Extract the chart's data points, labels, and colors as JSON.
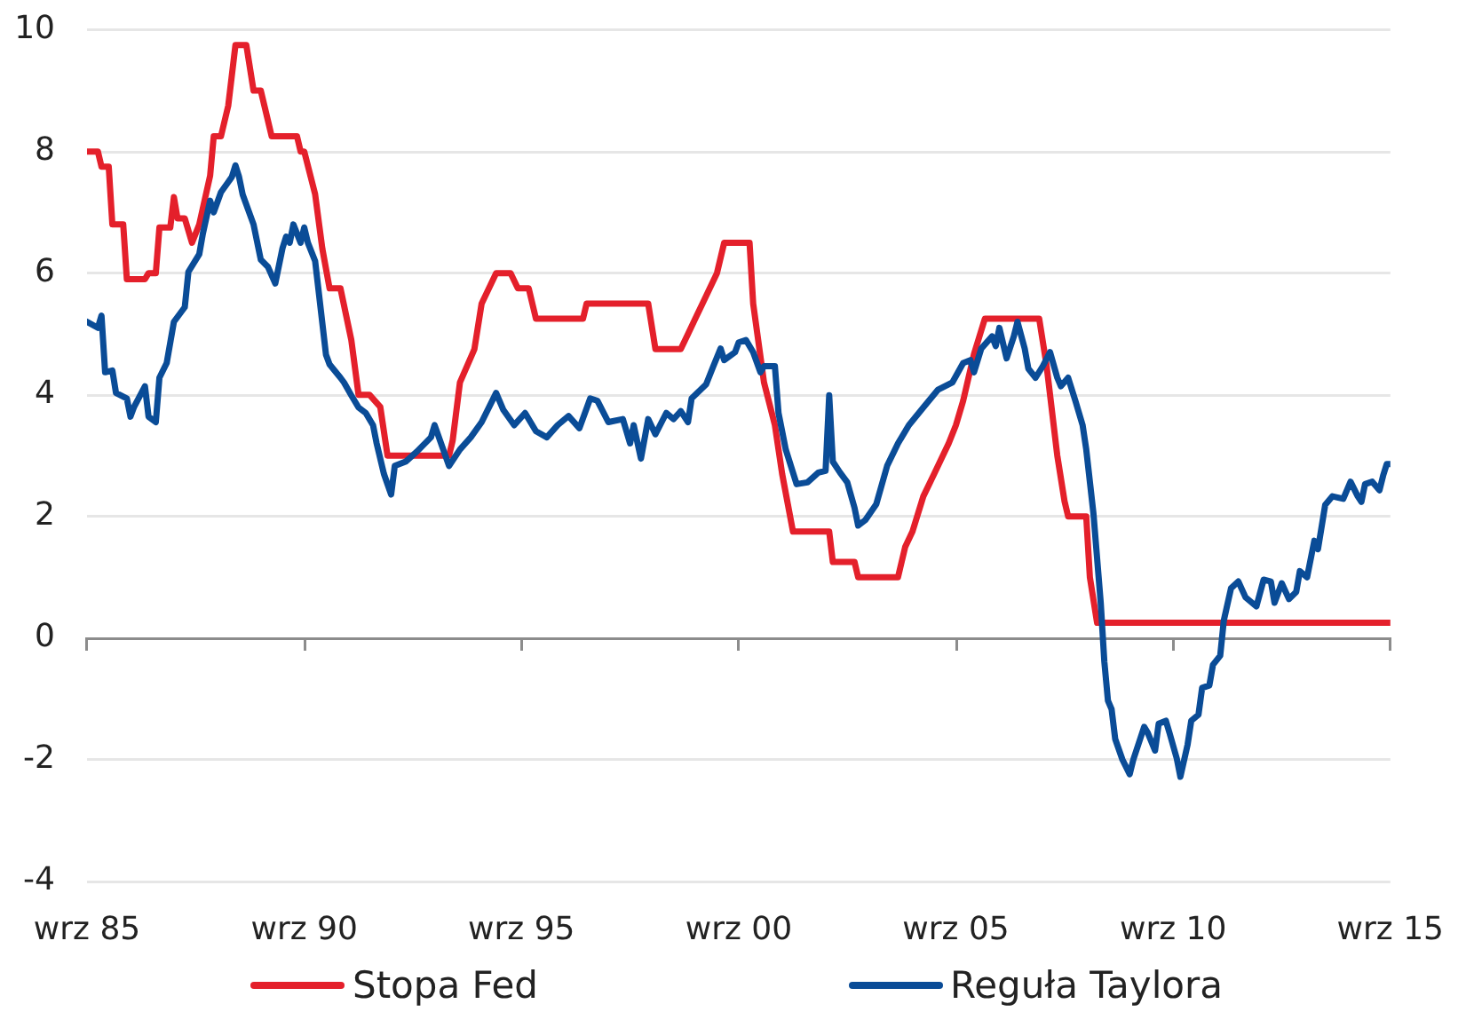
{
  "chart_data": {
    "type": "line",
    "xlim": [
      "1985-09",
      "2015-09"
    ],
    "xticks": [
      {
        "value": "1985-09",
        "label": "wrz 85"
      },
      {
        "value": "1990-09",
        "label": "wrz 90"
      },
      {
        "value": "1995-09",
        "label": "wrz 95"
      },
      {
        "value": "2000-09",
        "label": "wrz 00"
      },
      {
        "value": "2005-09",
        "label": "wrz 05"
      },
      {
        "value": "2010-09",
        "label": "wrz 10"
      },
      {
        "value": "2015-09",
        "label": "wrz 15"
      }
    ],
    "ylim": [
      -4,
      10
    ],
    "yticks": [
      -4,
      -2,
      0,
      2,
      4,
      6,
      8,
      10
    ],
    "grid": "y",
    "legend": "bottom",
    "series": [
      {
        "name": "Stopa Fed",
        "color": "#e4202b",
        "x": [
          "1985-09",
          "1985-12",
          "1986-01",
          "1986-03",
          "1986-04",
          "1986-07",
          "1986-08",
          "1987-01",
          "1987-02",
          "1987-04",
          "1987-05",
          "1987-08",
          "1987-09",
          "1987-10",
          "1987-12",
          "1988-02",
          "1988-04",
          "1988-07",
          "1988-08",
          "1988-10",
          "1988-12",
          "1989-02",
          "1989-05",
          "1989-07",
          "1989-09",
          "1989-11",
          "1989-12",
          "1990-07",
          "1990-08",
          "1990-09",
          "1990-12",
          "1991-02",
          "1991-04",
          "1991-07",
          "1991-10",
          "1991-12",
          "1992-03",
          "1992-06",
          "1992-08",
          "1994-01",
          "1994-02",
          "1994-04",
          "1994-08",
          "1994-10",
          "1995-02",
          "1995-06",
          "1995-08",
          "1995-11",
          "1996-01",
          "1997-02",
          "1997-03",
          "1998-08",
          "1998-10",
          "1999-05",
          "1999-07",
          "1999-09",
          "1999-11",
          "2000-03",
          "2000-05",
          "2000-12",
          "2001-01",
          "2001-04",
          "2001-07",
          "2001-09",
          "2001-12",
          "2002-10",
          "2002-11",
          "2003-05",
          "2003-06",
          "2004-05",
          "2004-07",
          "2004-09",
          "2004-12",
          "2005-03",
          "2005-07",
          "2005-09",
          "2005-11",
          "2006-02",
          "2006-05",
          "2007-08",
          "2007-10",
          "2008-01",
          "2008-03",
          "2008-04",
          "2008-09",
          "2008-10",
          "2008-12",
          "2015-09"
        ],
        "values": [
          8.0,
          8.0,
          7.75,
          7.75,
          6.8,
          6.8,
          5.9,
          5.9,
          6.0,
          6.0,
          6.75,
          6.75,
          7.25,
          6.9,
          6.9,
          6.5,
          6.8,
          7.6,
          8.25,
          8.25,
          8.75,
          9.75,
          9.75,
          9.0,
          9.0,
          8.5,
          8.25,
          8.25,
          8.0,
          8.0,
          7.3,
          6.4,
          5.75,
          5.75,
          4.9,
          4.0,
          4.0,
          3.8,
          3.0,
          3.0,
          3.25,
          4.2,
          4.75,
          5.5,
          6.0,
          6.0,
          5.75,
          5.75,
          5.25,
          5.25,
          5.5,
          5.5,
          4.75,
          4.75,
          5.0,
          5.25,
          5.5,
          6.0,
          6.5,
          6.5,
          5.5,
          4.2,
          3.5,
          2.7,
          1.75,
          1.75,
          1.25,
          1.25,
          1.0,
          1.0,
          1.5,
          1.75,
          2.33,
          2.7,
          3.2,
          3.5,
          3.9,
          4.67,
          5.25,
          5.25,
          4.5,
          3.0,
          2.25,
          2.0,
          2.0,
          1.0,
          0.25,
          0.25
        ]
      },
      {
        "name": "Reguła Taylora",
        "color": "#0a4c97",
        "x": [
          "1985-09",
          "1985-12",
          "1986-01",
          "1986-02",
          "1986-04",
          "1986-05",
          "1986-08",
          "1986-09",
          "1986-10",
          "1987-01",
          "1987-02",
          "1987-04",
          "1987-05",
          "1987-07",
          "1987-09",
          "1987-12",
          "1988-01",
          "1988-04",
          "1988-05",
          "1988-07",
          "1988-08",
          "1988-10",
          "1989-01",
          "1989-02",
          "1989-03",
          "1989-04",
          "1989-07",
          "1989-09",
          "1989-11",
          "1990-01",
          "1990-03",
          "1990-04",
          "1990-05",
          "1990-06",
          "1990-08",
          "1990-09",
          "1990-10",
          "1990-12",
          "1991-01",
          "1991-03",
          "1991-04",
          "1991-07",
          "1991-08",
          "1991-10",
          "1991-12",
          "1992-02",
          "1992-04",
          "1992-05",
          "1992-07",
          "1992-09",
          "1992-10",
          "1993-01",
          "1993-04",
          "1993-08",
          "1993-09",
          "1994-01",
          "1994-04",
          "1994-07",
          "1994-10",
          "1995-02",
          "1995-04",
          "1995-07",
          "1995-10",
          "1996-01",
          "1996-04",
          "1996-07",
          "1996-10",
          "1997-01",
          "1997-04",
          "1997-06",
          "1997-09",
          "1998-01",
          "1998-03",
          "1998-04",
          "1998-06",
          "1998-08",
          "1998-10",
          "1999-01",
          "1999-03",
          "1999-05",
          "1999-07",
          "1999-08",
          "1999-12",
          "2000-02",
          "2000-04",
          "2000-05",
          "2000-08",
          "2000-09",
          "2000-11",
          "2001-01",
          "2001-03",
          "2001-04",
          "2001-07",
          "2001-08",
          "2001-10",
          "2002-01",
          "2002-04",
          "2002-07",
          "2002-09",
          "2002-10",
          "2002-11",
          "2003-01",
          "2003-03",
          "2003-05",
          "2003-06",
          "2003-08",
          "2003-11",
          "2004-02",
          "2004-05",
          "2004-08",
          "2004-12",
          "2005-04",
          "2005-08",
          "2005-11",
          "2006-01",
          "2006-02",
          "2006-04",
          "2006-07",
          "2006-08",
          "2006-09",
          "2006-11",
          "2007-01",
          "2007-02",
          "2007-04",
          "2007-05",
          "2007-07",
          "2007-09",
          "2007-11",
          "2008-01",
          "2008-02",
          "2008-04",
          "2008-06",
          "2008-08",
          "2008-09",
          "2008-11",
          "2009-01",
          "2009-02",
          "2009-03",
          "2009-04",
          "2009-05",
          "2009-07",
          "2009-09",
          "2009-10",
          "2010-01",
          "2010-02",
          "2010-04",
          "2010-05",
          "2010-07",
          "2010-08",
          "2010-10",
          "2010-11",
          "2011-01",
          "2011-02",
          "2011-04",
          "2011-05",
          "2011-07",
          "2011-08",
          "2011-10",
          "2011-11",
          "2012-01",
          "2012-03",
          "2012-05",
          "2012-08",
          "2012-10",
          "2012-12",
          "2013-01",
          "2013-03",
          "2013-05",
          "2013-07",
          "2013-08",
          "2013-10",
          "2013-12",
          "2014-01",
          "2014-03",
          "2014-05",
          "2014-08",
          "2014-10",
          "2014-12",
          "2015-01",
          "2015-02",
          "2015-04",
          "2015-06",
          "2015-07",
          "2015-08",
          "2015-09"
        ],
        "values": [
          5.2,
          5.1,
          5.3,
          4.37,
          4.4,
          4.03,
          3.94,
          3.64,
          3.8,
          4.14,
          3.64,
          3.55,
          4.28,
          4.52,
          5.2,
          5.44,
          6.02,
          6.31,
          6.65,
          7.19,
          7.0,
          7.33,
          7.58,
          7.77,
          7.58,
          7.29,
          6.8,
          6.22,
          6.1,
          5.83,
          6.41,
          6.6,
          6.5,
          6.8,
          6.5,
          6.75,
          6.5,
          6.2,
          5.69,
          4.66,
          4.5,
          4.28,
          4.2,
          3.99,
          3.79,
          3.7,
          3.5,
          3.2,
          2.7,
          2.36,
          2.83,
          2.9,
          3.06,
          3.3,
          3.5,
          2.83,
          3.1,
          3.3,
          3.55,
          4.03,
          3.75,
          3.5,
          3.7,
          3.4,
          3.3,
          3.5,
          3.65,
          3.45,
          3.94,
          3.9,
          3.55,
          3.6,
          3.2,
          3.5,
          2.95,
          3.6,
          3.35,
          3.7,
          3.6,
          3.73,
          3.55,
          3.94,
          4.17,
          4.47,
          4.76,
          4.57,
          4.7,
          4.86,
          4.9,
          4.7,
          4.37,
          4.47,
          4.47,
          3.7,
          3.1,
          2.53,
          2.56,
          2.72,
          2.75,
          3.99,
          2.9,
          2.72,
          2.56,
          2.14,
          1.85,
          1.94,
          2.2,
          2.83,
          3.2,
          3.5,
          3.79,
          4.08,
          4.2,
          4.52,
          4.57,
          4.37,
          4.76,
          4.96,
          4.8,
          5.1,
          4.6,
          4.96,
          5.2,
          4.76,
          4.43,
          4.28,
          4.47,
          4.7,
          4.28,
          4.14,
          4.28,
          3.9,
          3.5,
          3.1,
          2.04,
          0.58,
          -0.39,
          -1.03,
          -1.17,
          -1.66,
          -2.0,
          -2.24,
          -2.0,
          -1.46,
          -1.56,
          -1.85,
          -1.41,
          -1.36,
          -1.56,
          -1.98,
          -2.28,
          -1.75,
          -1.36,
          -1.26,
          -0.82,
          -0.78,
          -0.44,
          -0.29,
          0.29,
          0.82,
          0.93,
          0.67,
          0.52,
          0.96,
          0.93,
          0.58,
          0.9,
          0.64,
          0.76,
          1.1,
          1.0,
          1.6,
          1.46,
          2.19,
          2.33,
          2.29,
          2.57,
          2.33,
          2.24,
          2.53,
          2.57,
          2.43,
          2.67,
          2.86,
          2.86
        ]
      }
    ]
  }
}
